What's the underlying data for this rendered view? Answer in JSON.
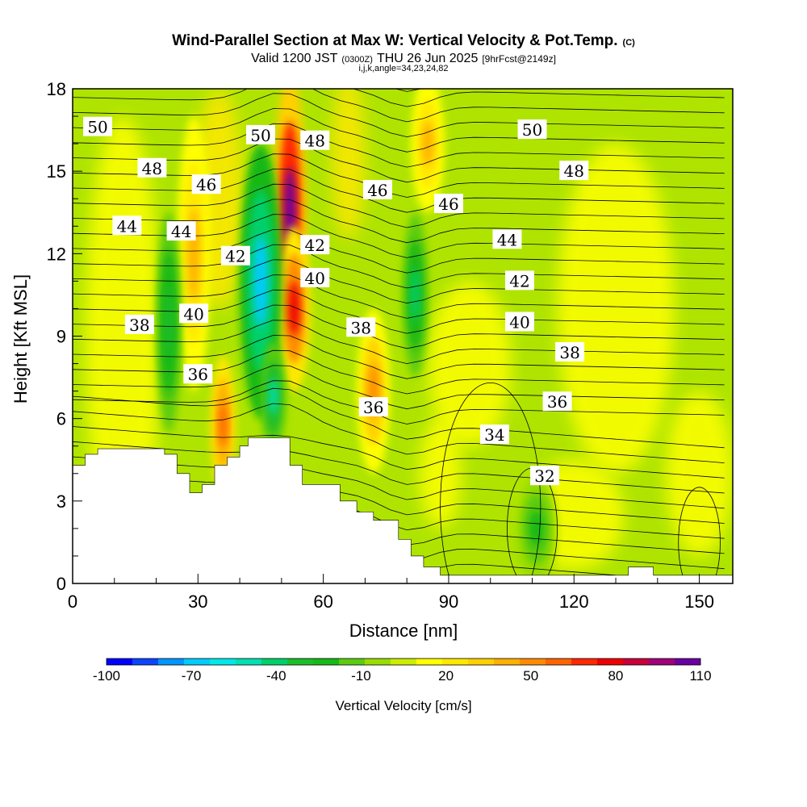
{
  "header": {
    "title": "Wind-Parallel Section at Max W: Vertical Velocity & Pot.Temp.",
    "copyright": "(C)",
    "valid_prefix": "Valid 1200 JST",
    "valid_utc": "(0300Z)",
    "valid_date": "THU 26 Jun 2025",
    "forecast": "[9hrFcst@2149z]",
    "params": "i,j,k,angle=34,23,24,82"
  },
  "chart_data": {
    "type": "heatmap",
    "xlabel": "Distance [nm]",
    "ylabel": "Height [Kft MSL]",
    "xlim": [
      0,
      158
    ],
    "ylim": [
      0,
      18
    ],
    "x_ticks": [
      0,
      30,
      60,
      90,
      120,
      150
    ],
    "y_ticks": [
      0,
      3,
      6,
      9,
      12,
      15,
      18
    ],
    "colorbar": {
      "label": "Vertical Velocity [cm/s]",
      "min": -100,
      "max": 110,
      "step": 10,
      "tick_labels": [
        "-100",
        "-70",
        "-40",
        "-10",
        "20",
        "50",
        "80",
        "110"
      ],
      "colors": [
        "#0000ff",
        "#0b45ff",
        "#0095ff",
        "#00ccff",
        "#00e8e8",
        "#00e0b0",
        "#00d06a",
        "#1dbd2a",
        "#18b818",
        "#5ccc10",
        "#99dd00",
        "#ccee00",
        "#ffff00",
        "#ffe800",
        "#ffd000",
        "#ffb000",
        "#ff8c00",
        "#ff6400",
        "#ff2800",
        "#ee0000",
        "#c8003c",
        "#a00078",
        "#6a00a0"
      ]
    },
    "theta_contour_labels": [
      {
        "value": "50",
        "x": 6,
        "y": 16.6
      },
      {
        "value": "48",
        "x": 19,
        "y": 15.1
      },
      {
        "value": "46",
        "x": 32,
        "y": 14.5
      },
      {
        "value": "44",
        "x": 13,
        "y": 13.0
      },
      {
        "value": "44",
        "x": 26,
        "y": 12.8
      },
      {
        "value": "42",
        "x": 39,
        "y": 11.9
      },
      {
        "value": "40",
        "x": 29,
        "y": 9.8
      },
      {
        "value": "38",
        "x": 16,
        "y": 9.4
      },
      {
        "value": "36",
        "x": 30,
        "y": 7.6
      },
      {
        "value": "50",
        "x": 45,
        "y": 16.3
      },
      {
        "value": "48",
        "x": 58,
        "y": 16.1
      },
      {
        "value": "46",
        "x": 73,
        "y": 14.3
      },
      {
        "value": "42",
        "x": 58,
        "y": 12.3
      },
      {
        "value": "40",
        "x": 58,
        "y": 11.1
      },
      {
        "value": "38",
        "x": 69,
        "y": 9.3
      },
      {
        "value": "36",
        "x": 72,
        "y": 6.4
      },
      {
        "value": "46",
        "x": 90,
        "y": 13.8
      },
      {
        "value": "50",
        "x": 110,
        "y": 16.5
      },
      {
        "value": "48",
        "x": 120,
        "y": 15.0
      },
      {
        "value": "44",
        "x": 104,
        "y": 12.5
      },
      {
        "value": "42",
        "x": 107,
        "y": 11.0
      },
      {
        "value": "40",
        "x": 107,
        "y": 9.5
      },
      {
        "value": "38",
        "x": 119,
        "y": 8.4
      },
      {
        "value": "36",
        "x": 116,
        "y": 6.6
      },
      {
        "value": "34",
        "x": 101,
        "y": 5.4
      },
      {
        "value": "32",
        "x": 113,
        "y": 3.9
      }
    ],
    "velocity_features": [
      {
        "kind": "updraft",
        "x": 52,
        "y": 13.5,
        "rx": 4,
        "ry": 5,
        "w": 110
      },
      {
        "kind": "updraft",
        "x": 53,
        "y": 10.0,
        "rx": 4,
        "ry": 3,
        "w": 80
      },
      {
        "kind": "downdraft",
        "x": 45,
        "y": 11.0,
        "rx": 5,
        "ry": 5,
        "w": -70
      },
      {
        "kind": "downdraft",
        "x": 48,
        "y": 6.8,
        "rx": 3,
        "ry": 2,
        "w": -50
      },
      {
        "kind": "updraft",
        "x": 36,
        "y": 5.8,
        "rx": 3,
        "ry": 2.5,
        "w": 60
      },
      {
        "kind": "updraft",
        "x": 29,
        "y": 12.0,
        "rx": 4,
        "ry": 5,
        "w": 40
      },
      {
        "kind": "downdraft",
        "x": 23,
        "y": 9.5,
        "rx": 3,
        "ry": 4,
        "w": -30
      },
      {
        "kind": "updraft",
        "x": 72,
        "y": 7.0,
        "rx": 4,
        "ry": 3,
        "w": 50
      },
      {
        "kind": "updraft",
        "x": 85,
        "y": 16.0,
        "rx": 4,
        "ry": 2.5,
        "w": 40
      },
      {
        "kind": "downdraft",
        "x": 82,
        "y": 10.5,
        "rx": 3,
        "ry": 3,
        "w": -40
      },
      {
        "kind": "downdraft",
        "x": 111,
        "y": 2.0,
        "rx": 5,
        "ry": 2,
        "w": -20
      }
    ],
    "terrain": [
      [
        0,
        4.3
      ],
      [
        3,
        4.3
      ],
      [
        3,
        4.7
      ],
      [
        6,
        4.7
      ],
      [
        6,
        4.9
      ],
      [
        22,
        4.9
      ],
      [
        22,
        4.7
      ],
      [
        25,
        4.7
      ],
      [
        25,
        4.0
      ],
      [
        28,
        4.0
      ],
      [
        28,
        3.3
      ],
      [
        31,
        3.3
      ],
      [
        31,
        3.6
      ],
      [
        34,
        3.6
      ],
      [
        34,
        4.3
      ],
      [
        37,
        4.3
      ],
      [
        37,
        4.6
      ],
      [
        40,
        4.6
      ],
      [
        40,
        5.0
      ],
      [
        42,
        5.0
      ],
      [
        42,
        5.3
      ],
      [
        52,
        5.3
      ],
      [
        52,
        4.3
      ],
      [
        55,
        4.3
      ],
      [
        55,
        3.6
      ],
      [
        64,
        3.6
      ],
      [
        64,
        3.0
      ],
      [
        68,
        3.0
      ],
      [
        68,
        2.6
      ],
      [
        72,
        2.6
      ],
      [
        72,
        2.3
      ],
      [
        78,
        2.3
      ],
      [
        78,
        1.6
      ],
      [
        81,
        1.6
      ],
      [
        81,
        1.0
      ],
      [
        84,
        1.0
      ],
      [
        84,
        0.6
      ],
      [
        88,
        0.6
      ],
      [
        88,
        0.3
      ],
      [
        133,
        0.3
      ],
      [
        133,
        0.6
      ],
      [
        139,
        0.6
      ],
      [
        139,
        0.3
      ],
      [
        158,
        0.3
      ]
    ]
  }
}
